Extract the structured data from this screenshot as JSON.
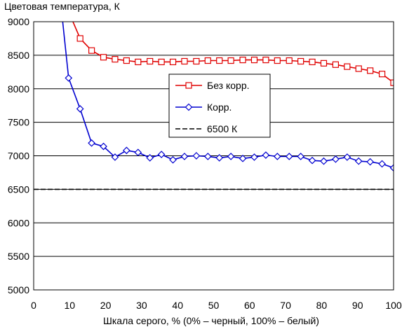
{
  "chart_data": {
    "type": "line",
    "title": "Цветовая температура, К",
    "xlabel": "Шкала серого, % (0% – черный, 100% – белый)",
    "ylabel": "",
    "xlim": [
      0,
      100
    ],
    "ylim": [
      5000,
      9000
    ],
    "xticks": [
      "0",
      "10",
      "20",
      "30",
      "40",
      "50",
      "60",
      "70",
      "80",
      "90",
      "100"
    ],
    "yticks": [
      "5000",
      "5500",
      "6000",
      "6500",
      "7000",
      "7500",
      "8000",
      "8500",
      "9000"
    ],
    "grid": "horizontal",
    "legend_position": "center",
    "series": [
      {
        "name": "Без корр.",
        "color": "#e00000",
        "marker": "square",
        "x": [
          9.7,
          12.9,
          16.1,
          19.4,
          22.6,
          25.8,
          29.0,
          32.3,
          35.5,
          38.7,
          41.9,
          45.2,
          48.4,
          51.6,
          54.8,
          58.1,
          61.3,
          64.5,
          67.7,
          71.0,
          74.2,
          77.4,
          80.6,
          83.9,
          87.1,
          90.3,
          93.5,
          96.8,
          100
        ],
        "values": [
          9150,
          8750,
          8570,
          8470,
          8440,
          8420,
          8400,
          8410,
          8400,
          8400,
          8410,
          8410,
          8420,
          8420,
          8420,
          8430,
          8430,
          8430,
          8420,
          8420,
          8410,
          8400,
          8380,
          8360,
          8330,
          8300,
          8270,
          8220,
          8090
        ]
      },
      {
        "name": "Корр.",
        "color": "#0000d0",
        "marker": "diamond",
        "x": [
          6.5,
          9.7,
          12.9,
          16.1,
          19.4,
          22.6,
          25.8,
          29.0,
          32.3,
          35.5,
          38.7,
          41.9,
          45.2,
          48.4,
          51.6,
          54.8,
          58.1,
          61.3,
          64.5,
          67.7,
          71.0,
          74.2,
          77.4,
          80.6,
          83.9,
          87.1,
          90.3,
          93.5,
          96.8,
          100
        ],
        "values": [
          9800,
          8160,
          7700,
          7190,
          7140,
          6980,
          7080,
          7050,
          6970,
          7020,
          6940,
          6990,
          7000,
          6990,
          6970,
          6990,
          6960,
          6980,
          7010,
          6990,
          6990,
          6990,
          6930,
          6920,
          6950,
          6980,
          6920,
          6910,
          6880,
          6820
        ]
      },
      {
        "name": "6500 К",
        "color": "#000000",
        "style": "dashed",
        "x": [
          0,
          100
        ],
        "values": [
          6500,
          6500
        ]
      }
    ]
  }
}
